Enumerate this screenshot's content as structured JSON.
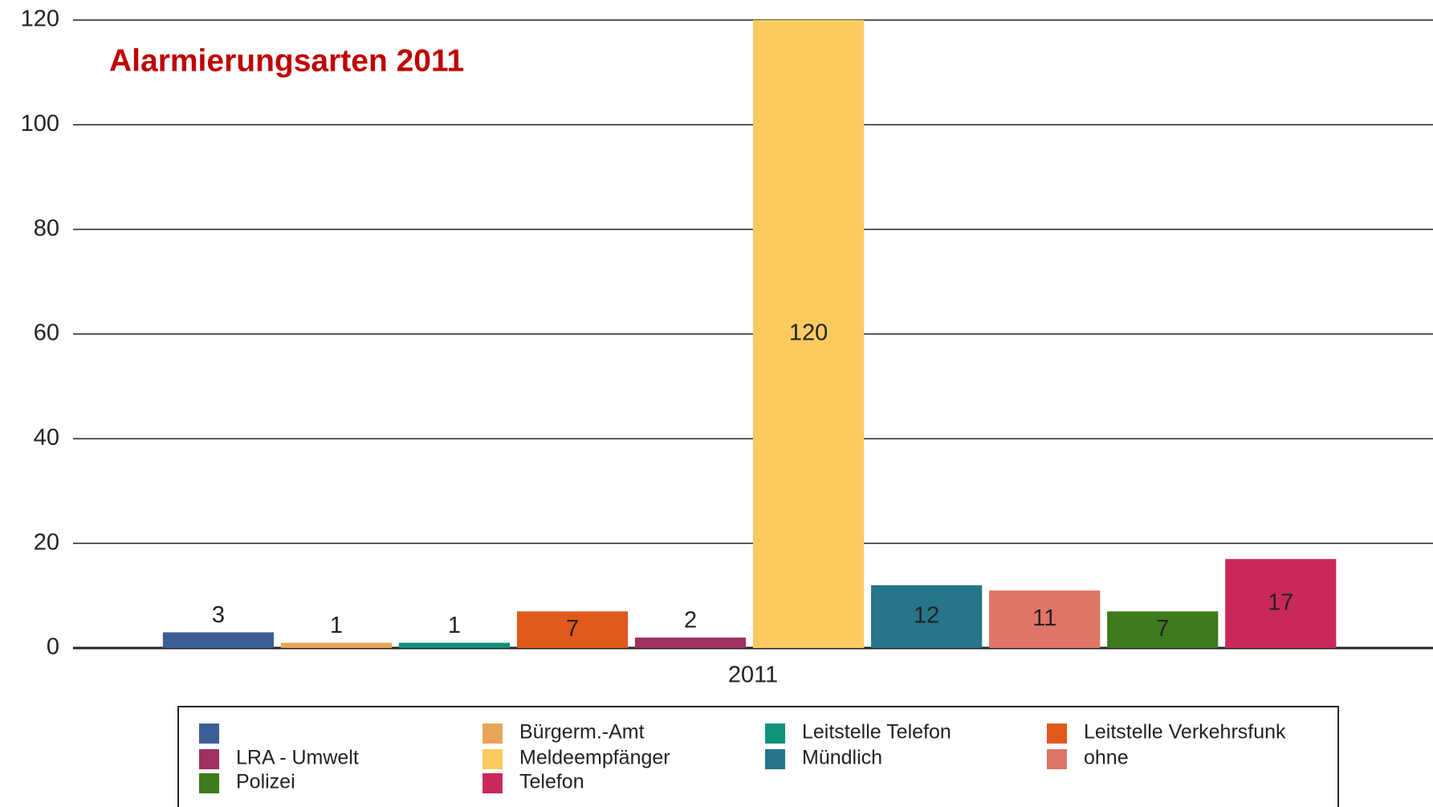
{
  "chart_data": {
    "type": "bar",
    "title": "Alarmierungsarten 2011",
    "categories": [
      "2011"
    ],
    "series": [
      {
        "name": null,
        "color": "#3b5f95",
        "values": [
          3
        ]
      },
      {
        "name": "Bürgerm.-Amt",
        "color": "#e8a55a",
        "values": [
          1
        ]
      },
      {
        "name": "Leitstelle Telefon",
        "color": "#10917a",
        "values": [
          1
        ]
      },
      {
        "name": "Leitstelle Verkehrsfunk",
        "color": "#e05a1e",
        "values": [
          7
        ]
      },
      {
        "name": "LRA - Umwelt",
        "color": "#a0305f",
        "values": [
          2
        ]
      },
      {
        "name": "Meldeempfänger",
        "color": "#fccb60",
        "values": [
          120
        ]
      },
      {
        "name": "Mündlich",
        "color": "#267588",
        "values": [
          12
        ]
      },
      {
        "name": "ohne",
        "color": "#e07468",
        "values": [
          11
        ]
      },
      {
        "name": "Polizei",
        "color": "#3f7a1c",
        "values": [
          7
        ]
      },
      {
        "name": "Telefon",
        "color": "#c9285a",
        "values": [
          17
        ]
      }
    ],
    "ylim": [
      0,
      120
    ],
    "yticks": [
      0,
      20,
      40,
      60,
      80,
      100,
      120
    ],
    "grid": true,
    "legend": "bottom"
  }
}
